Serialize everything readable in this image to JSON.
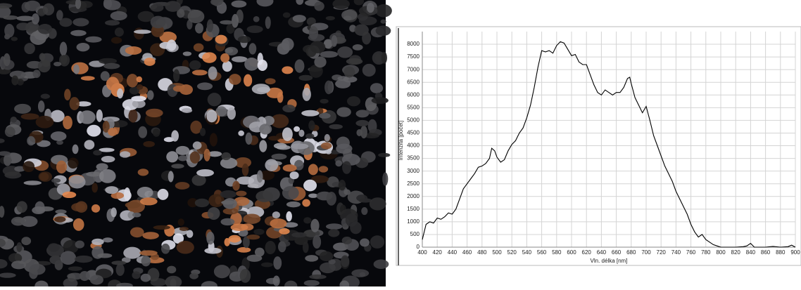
{
  "chart_data": {
    "type": "line",
    "x_label": "Vln. délka [nm]",
    "y_label": "Intenzita [počet]",
    "x": [
      400,
      405,
      410,
      415,
      420,
      425,
      430,
      435,
      440,
      445,
      450,
      455,
      460,
      465,
      470,
      475,
      480,
      485,
      490,
      493,
      497,
      500,
      505,
      510,
      515,
      520,
      525,
      530,
      535,
      540,
      545,
      550,
      555,
      560,
      565,
      570,
      575,
      580,
      585,
      590,
      595,
      600,
      605,
      610,
      615,
      620,
      625,
      630,
      635,
      640,
      645,
      650,
      655,
      660,
      665,
      670,
      675,
      678,
      680,
      685,
      690,
      695,
      700,
      705,
      710,
      715,
      720,
      725,
      730,
      735,
      740,
      745,
      750,
      755,
      760,
      765,
      770,
      775,
      780,
      785,
      790,
      795,
      800,
      810,
      820,
      830,
      835,
      840,
      845,
      860,
      870,
      880,
      890,
      895,
      900
    ],
    "values": [
      300,
      900,
      1000,
      950,
      1150,
      1100,
      1200,
      1350,
      1300,
      1500,
      1900,
      2300,
      2500,
      2700,
      2900,
      3150,
      3200,
      3300,
      3500,
      3900,
      3800,
      3550,
      3350,
      3450,
      3800,
      4050,
      4200,
      4500,
      4700,
      5100,
      5600,
      6300,
      7100,
      7750,
      7700,
      7750,
      7650,
      7950,
      8100,
      8050,
      7800,
      7550,
      7600,
      7300,
      7200,
      7200,
      6800,
      6400,
      6100,
      6000,
      6200,
      6100,
      6000,
      6100,
      6100,
      6300,
      6650,
      6700,
      6450,
      5900,
      5600,
      5300,
      5550,
      5000,
      4400,
      4000,
      3600,
      3200,
      2900,
      2600,
      2200,
      1900,
      1600,
      1300,
      900,
      600,
      400,
      500,
      300,
      200,
      100,
      50,
      0,
      0,
      0,
      20,
      50,
      150,
      0,
      0,
      30,
      0,
      20,
      80,
      0
    ],
    "color": "#000000",
    "xlim": [
      400,
      900
    ],
    "ylim": [
      0,
      8500
    ],
    "xticks": [
      400,
      420,
      440,
      460,
      480,
      500,
      520,
      540,
      560,
      580,
      600,
      620,
      640,
      660,
      680,
      700,
      720,
      740,
      760,
      780,
      800,
      820,
      840,
      860,
      880,
      900
    ],
    "yticks": [
      0,
      500,
      1000,
      1500,
      2000,
      2500,
      3000,
      3500,
      4000,
      4500,
      5000,
      5500,
      6000,
      6500,
      7000,
      7500,
      8000
    ],
    "grid": true
  }
}
